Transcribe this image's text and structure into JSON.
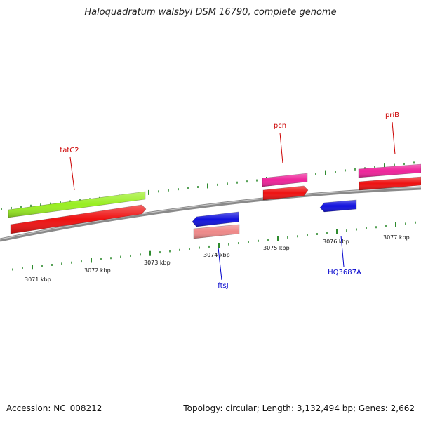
{
  "title": "Haloquadratum walsbyi DSM 16790, complete genome",
  "footer": {
    "accession": "Accession: NC_008212",
    "summary": "Topology: circular; Length: 3,132,494 bp; Genes: 2,662"
  },
  "colors": {
    "backbone": "#8a8a8a",
    "tick": "#2e8b2e",
    "forward_label": "#cc0000",
    "reverse_label": "#0000cc"
  },
  "ticks": [
    {
      "name": "tick-3071",
      "label": "3071 kbp"
    },
    {
      "name": "tick-3072",
      "label": "3072 kbp"
    },
    {
      "name": "tick-3073",
      "label": "3073 kbp"
    },
    {
      "name": "tick-3074",
      "label": "3074 kbp"
    },
    {
      "name": "tick-3075",
      "label": "3075 kbp"
    },
    {
      "name": "tick-3076",
      "label": "3076 kbp"
    },
    {
      "name": "tick-3077",
      "label": "3077 kbp"
    }
  ],
  "features": [
    {
      "name": "gene-tatC2",
      "label": "tatC2",
      "strand": "+",
      "color": "#99ee22"
    },
    {
      "name": "cds-tatC2",
      "label": "",
      "strand": "+",
      "color": "#ee1111"
    },
    {
      "name": "gene-pcn",
      "label": "pcn",
      "strand": "+",
      "color": "#ee2299"
    },
    {
      "name": "cds-pcn",
      "label": "",
      "strand": "+",
      "color": "#ee1111"
    },
    {
      "name": "gene-priB",
      "label": "priB",
      "strand": "+",
      "color": "#ee2299"
    },
    {
      "name": "cds-priB",
      "label": "",
      "strand": "+",
      "color": "#ee1111"
    },
    {
      "name": "cds-ftsJ",
      "label": "ftsJ",
      "strand": "-",
      "color": "#1111dd"
    },
    {
      "name": "gene-ftsJ",
      "label": "",
      "strand": "-",
      "color": "#ee8888"
    },
    {
      "name": "cds-HQ3687A",
      "label": "HQ3687A",
      "strand": "-",
      "color": "#1111dd"
    }
  ]
}
